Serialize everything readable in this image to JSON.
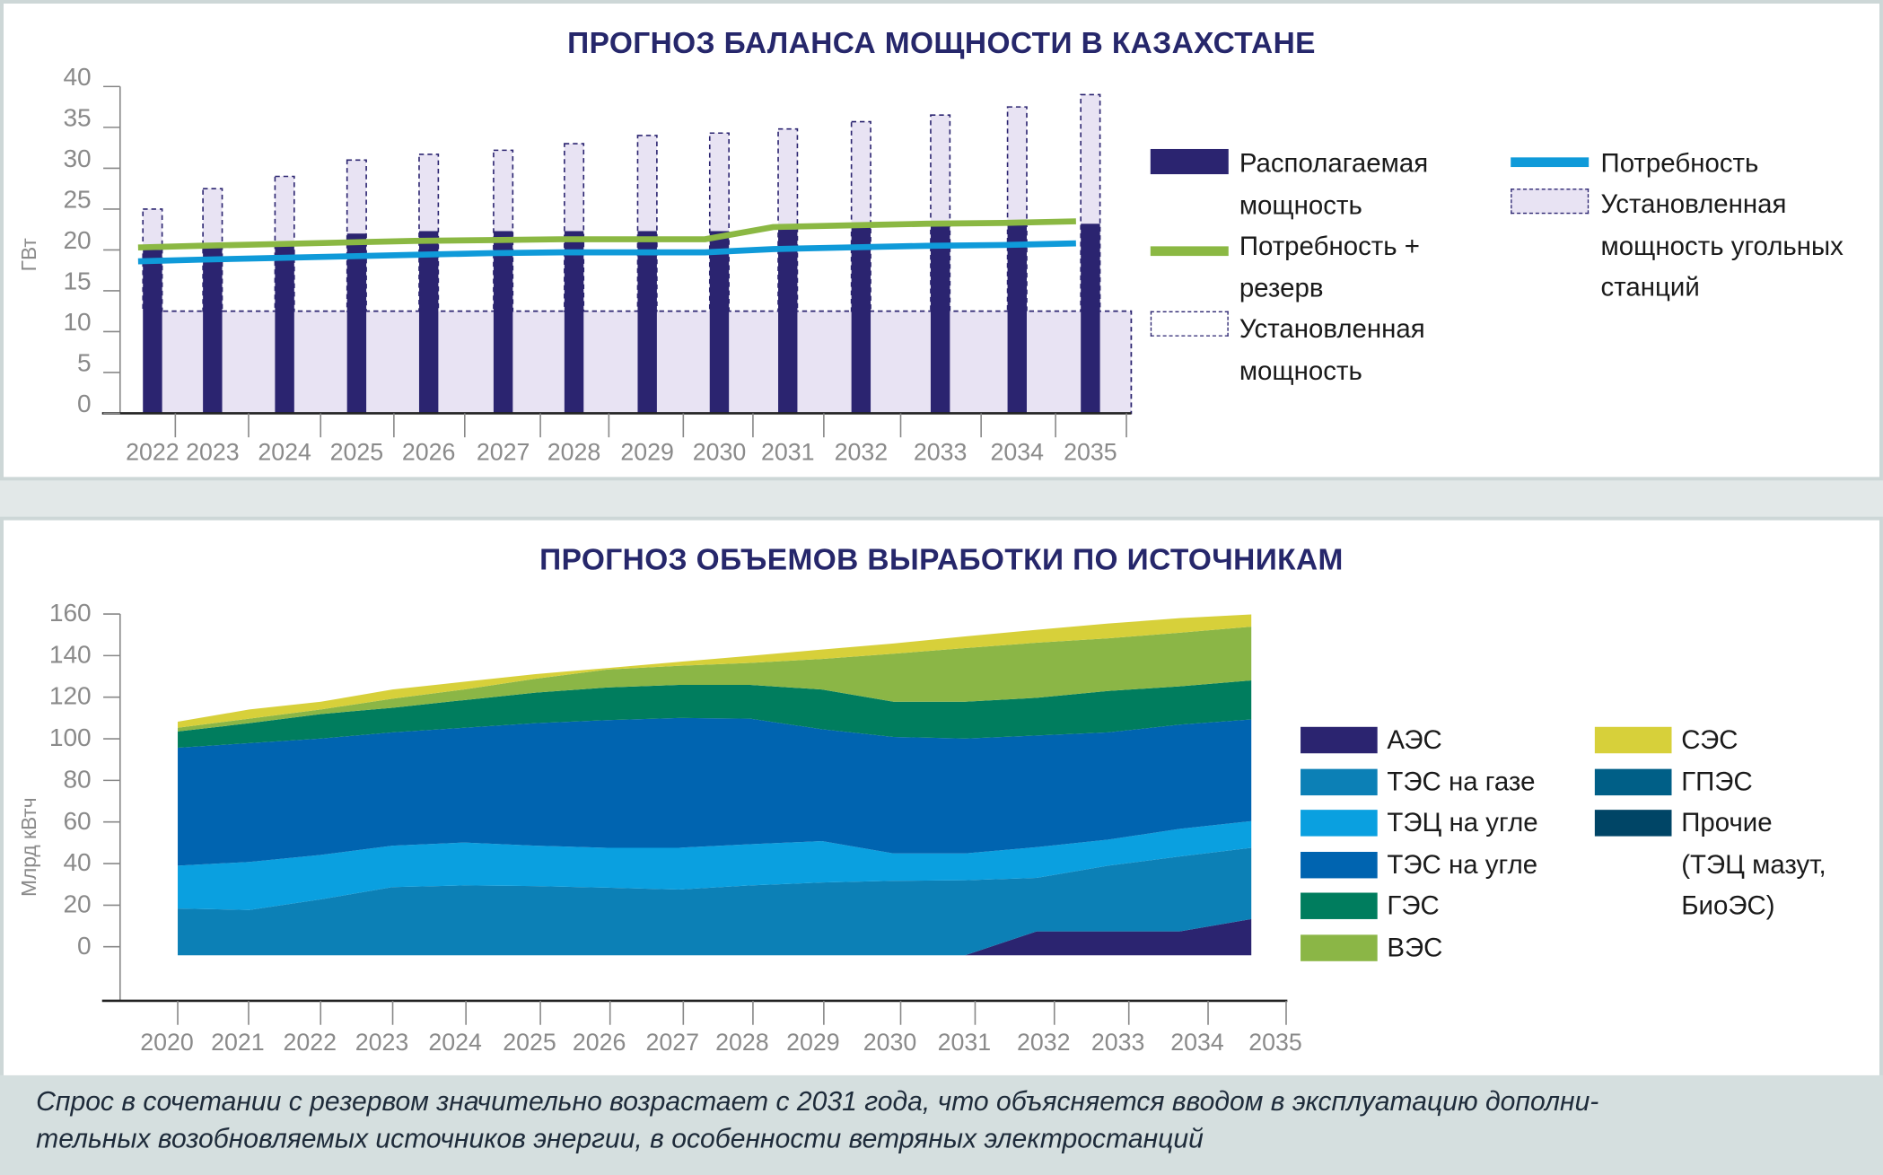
{
  "chart_data": [
    {
      "type": "bar",
      "title": "ПРОГНОЗ БАЛАНСА МОЩНОСТИ В КАЗАХСТАНЕ",
      "ylabel": "ГВт",
      "xlabel": "",
      "ylim": [
        0,
        40
      ],
      "yticks": [
        0,
        5,
        10,
        15,
        20,
        25,
        30,
        35,
        40
      ],
      "categories": [
        "2022",
        "2023",
        "2024",
        "2025",
        "2026",
        "2027",
        "2028",
        "2029",
        "2030",
        "2031",
        "2032",
        "2033",
        "2034",
        "2035"
      ],
      "series": [
        {
          "name": "Располагаемая мощность",
          "kind": "bar",
          "color": "#2b2470",
          "values": [
            20,
            20.5,
            21,
            22,
            22.3,
            22.3,
            22.3,
            22.3,
            22.3,
            22.5,
            22.8,
            23,
            23.2,
            23.2
          ]
        },
        {
          "name": "Установленная мощность",
          "kind": "dashed-bar",
          "color": "#e8e3f3",
          "values": [
            25,
            27.5,
            29,
            31,
            31.7,
            32.2,
            33,
            34,
            34.3,
            34.8,
            35.7,
            36.5,
            37.5,
            39
          ]
        },
        {
          "name": "Установленная мощность угольных станций",
          "kind": "dashed-band",
          "color": "#e8e3f3",
          "values": [
            12.5,
            12.5,
            12.5,
            12.5,
            12.5,
            12.5,
            12.5,
            12.5,
            12.5,
            12.5,
            12.5,
            12.5,
            12.5,
            12.5
          ]
        },
        {
          "name": "Потребность + резерв",
          "kind": "line",
          "color": "#8bb843",
          "values": [
            20.3,
            20.5,
            20.7,
            20.9,
            21.1,
            21.2,
            21.3,
            21.3,
            21.3,
            22.8,
            23,
            23.2,
            23.3,
            23.5
          ]
        },
        {
          "name": "Потребность",
          "kind": "line",
          "color": "#0f9ad9",
          "values": [
            18.6,
            18.8,
            19,
            19.2,
            19.4,
            19.6,
            19.7,
            19.7,
            19.7,
            20.1,
            20.3,
            20.5,
            20.6,
            20.8
          ]
        }
      ],
      "legend": {
        "col1": [
          {
            "lines": [
              "Располагаемая",
              "мощность"
            ]
          },
          {
            "lines": [
              "Потребность +",
              "резерв"
            ]
          },
          {
            "lines": [
              "Установленная",
              "мощность"
            ]
          }
        ],
        "col2": [
          {
            "lines": [
              "Потребность"
            ]
          },
          {
            "lines": [
              "Установленная",
              "мощность угольных",
              "станций"
            ]
          }
        ],
        "placement": "right"
      }
    },
    {
      "type": "area",
      "title": "ПРОГНОЗ ОБЪЕМОВ ВЫРАБОТКИ ПО ИСТОЧНИКАМ",
      "ylabel": "Млрд кВтч",
      "xlabel": "",
      "ylim": [
        0,
        160
      ],
      "yticks": [
        0,
        20,
        40,
        60,
        80,
        100,
        120,
        140,
        160
      ],
      "stack_baseline": -4.1,
      "x": [
        "2020",
        "2021",
        "2022",
        "2023",
        "2024",
        "2025",
        "2026",
        "2027",
        "2028",
        "2029",
        "2030",
        "2031",
        "2032",
        "2033",
        "2034",
        "2035"
      ],
      "series": [
        {
          "name": "АЭС",
          "color": "#2b2470",
          "values": [
            0,
            0,
            0,
            0,
            0,
            0,
            0,
            0,
            0,
            0,
            0,
            0,
            11.5,
            11.5,
            11.5,
            17.4
          ]
        },
        {
          "name": "ТЭС на газе",
          "color": "#0c80b6",
          "values": [
            22.5,
            21.8,
            26.9,
            32.8,
            33.6,
            33.3,
            32.5,
            31.6,
            33.6,
            35.0,
            35.8,
            36.1,
            25.7,
            31.6,
            36.0,
            34.3
          ]
        },
        {
          "name": "ТЭЦ на угле",
          "color": "#0aa0e0",
          "values": [
            20.6,
            23.1,
            21.4,
            19.9,
            20.6,
            19.4,
            19.2,
            20.1,
            19.8,
            19.9,
            13.2,
            12.9,
            14.8,
            12.5,
            13.3,
            12.8
          ]
        },
        {
          "name": "ТЭС на угле",
          "color": "#0064b0",
          "values": [
            56.7,
            57.1,
            55.9,
            54.5,
            55.2,
            58.9,
            61.4,
            62.4,
            60.4,
            53.8,
            56.0,
            55.2,
            53.7,
            51.6,
            50.1,
            48.9
          ]
        },
        {
          "name": "ГЭС",
          "color": "#007d5e",
          "values": [
            7.8,
            9.6,
            11.8,
            11.8,
            13.3,
            14.7,
            15.7,
            15.9,
            16.2,
            19.1,
            16.9,
            17.7,
            18.1,
            19.9,
            18.4,
            18.8
          ]
        },
        {
          "name": "ВЭС",
          "color": "#8bb646",
          "values": [
            1.8,
            2.2,
            2.2,
            4.4,
            5.1,
            6.7,
            8.6,
            9.2,
            10.6,
            14.7,
            23.1,
            25.8,
            26.5,
            25.3,
            25.8,
            25.8
          ]
        },
        {
          "name": "СЭС",
          "color": "#d7d03a",
          "values": [
            2.9,
            4.4,
            3.7,
            4.4,
            3.7,
            2.2,
            0.7,
            1.9,
            3.4,
            4.5,
            4.9,
            5.6,
            6.2,
            7.1,
            7.0,
            5.9
          ]
        },
        {
          "name": "ГПЭС",
          "color": "#005f87",
          "values": [
            0,
            0,
            0,
            0,
            0,
            0,
            0,
            0,
            0,
            0,
            0,
            0,
            0,
            0,
            0,
            0
          ]
        },
        {
          "name": "Прочие",
          "color": "#004566",
          "values": [
            0,
            0,
            0,
            0,
            0,
            0,
            0,
            0,
            0,
            0,
            0,
            0,
            0,
            0,
            0,
            0
          ]
        }
      ],
      "legend": {
        "col1": [
          "АЭС",
          "ТЭС на газе",
          "ТЭЦ на угле",
          "ТЭС на угле",
          "ГЭС",
          "ВЭС"
        ],
        "col2": [
          "СЭС",
          "ГПЭС",
          "Прочие",
          "(ТЭЦ мазут,",
          "БиоЭС)"
        ],
        "placement": "right"
      }
    }
  ],
  "caption": {
    "line1": "Спрос в сочетании с резервом значительно возрастает с 2031 года, что объясняется вводом в эксплуатацию дополни-",
    "line2": "тельных возобновляемых источников энергии, в особенности ветряных электростанций"
  }
}
